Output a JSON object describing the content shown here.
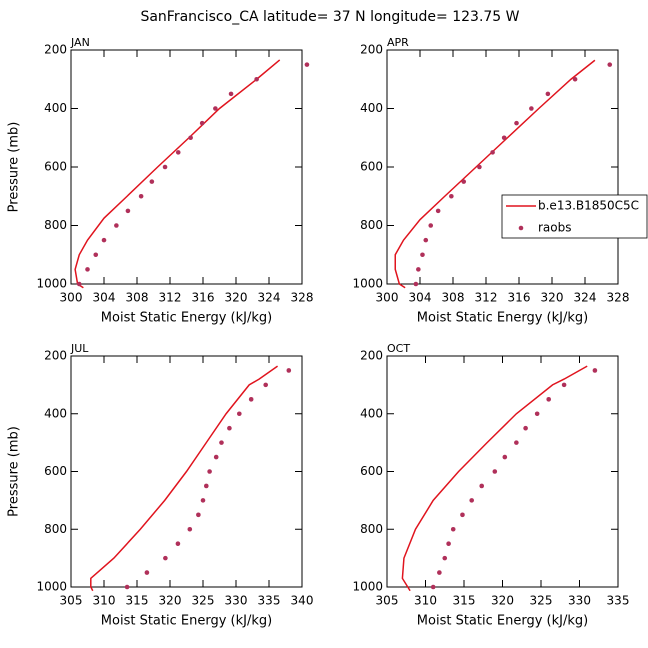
{
  "title": "SanFrancisco_CA  latitude= 37 N longitude= 123.75 W",
  "chart_data": [
    {
      "type": "line",
      "title": "JAN",
      "xlabel": "Moist Static Energy (kJ/kg)",
      "ylabel": "Pressure (mb)",
      "xlim": [
        300,
        328
      ],
      "xticks": [
        300,
        304,
        308,
        312,
        316,
        320,
        324,
        328
      ],
      "ylim": [
        200,
        1000
      ],
      "yticks": [
        200,
        400,
        600,
        800,
        1000
      ],
      "y_reversed": true,
      "series": [
        {
          "color": "#e0141e",
          "style": "line",
          "x": [
            325.3,
            322.5,
            318,
            314.3,
            310.5,
            306.8,
            304,
            302,
            301,
            300.5,
            300.8,
            301.5
          ],
          "values": [
            234,
            300,
            400,
            500,
            600,
            700,
            775,
            850,
            900,
            950,
            1000,
            1013
          ]
        },
        {
          "color": "#b0305a",
          "style": "marker",
          "x": [
            328.6,
            322.5,
            319.4,
            317.5,
            315.9,
            314.5,
            313,
            311.4,
            309.8,
            308.5,
            306.9,
            305.5,
            304,
            303,
            302,
            301
          ],
          "values": [
            250,
            300,
            350,
            400,
            450,
            500,
            550,
            600,
            650,
            700,
            750,
            800,
            850,
            900,
            950,
            1000
          ]
        }
      ]
    },
    {
      "type": "line",
      "title": "APR",
      "xlabel": "Moist Static Energy (kJ/kg)",
      "xlim": [
        300,
        328
      ],
      "xticks": [
        300,
        304,
        308,
        312,
        316,
        320,
        324,
        328
      ],
      "ylim": [
        200,
        1000
      ],
      "yticks": [
        200,
        400,
        600,
        800,
        1000
      ],
      "y_reversed": true,
      "legend": "right",
      "series": [
        {
          "name": "b.e13.B1850C5C",
          "color": "#e0141e",
          "style": "line",
          "x": [
            325.2,
            322.3,
            318.4,
            314.6,
            310.8,
            307,
            304,
            302,
            301,
            301,
            301.5,
            302.2
          ],
          "values": [
            235,
            300,
            400,
            500,
            600,
            700,
            780,
            850,
            900,
            950,
            1000,
            1013
          ]
        },
        {
          "name": "raobs",
          "color": "#b0305a",
          "style": "marker",
          "x": [
            327,
            322.8,
            319.5,
            317.5,
            315.7,
            314.2,
            312.8,
            311.2,
            309.3,
            307.8,
            306.2,
            305.3,
            304.7,
            304.3,
            303.8,
            303.5
          ],
          "values": [
            250,
            300,
            350,
            400,
            450,
            500,
            550,
            600,
            650,
            700,
            750,
            800,
            850,
            900,
            950,
            1000
          ]
        }
      ]
    },
    {
      "type": "line",
      "title": "JUL",
      "xlabel": "Moist Static Energy (kJ/kg)",
      "ylabel": "Pressure (mb)",
      "xlim": [
        305,
        340
      ],
      "xticks": [
        305,
        310,
        315,
        320,
        325,
        330,
        335,
        340
      ],
      "ylim": [
        200,
        1000
      ],
      "yticks": [
        200,
        400,
        600,
        800,
        1000
      ],
      "y_reversed": true,
      "series": [
        {
          "color": "#e0141e",
          "style": "line",
          "x": [
            336.3,
            333.5,
            332,
            328.5,
            325.5,
            322.5,
            319.2,
            315.5,
            311.5,
            309,
            308,
            308,
            308.3
          ],
          "values": [
            235,
            280,
            300,
            400,
            500,
            600,
            700,
            800,
            900,
            950,
            970,
            1000,
            1013
          ]
        },
        {
          "color": "#b0305a",
          "style": "marker",
          "x": [
            338,
            334.5,
            332.3,
            330.5,
            329,
            327.8,
            327,
            326,
            325.5,
            325,
            324.3,
            323,
            321.2,
            319.3,
            316.5,
            313.5
          ],
          "values": [
            250,
            300,
            350,
            400,
            450,
            500,
            550,
            600,
            650,
            700,
            750,
            800,
            850,
            900,
            950,
            1000
          ]
        }
      ]
    },
    {
      "type": "line",
      "title": "OCT",
      "xlabel": "Moist Static Energy (kJ/kg)",
      "xlim": [
        305,
        335
      ],
      "xticks": [
        305,
        310,
        315,
        320,
        325,
        330,
        335
      ],
      "ylim": [
        200,
        1000
      ],
      "yticks": [
        200,
        400,
        600,
        800,
        1000
      ],
      "y_reversed": true,
      "series": [
        {
          "color": "#e0141e",
          "style": "line",
          "x": [
            331,
            328,
            326.5,
            321.8,
            318,
            314.3,
            311,
            308.7,
            307.2,
            307,
            308
          ],
          "values": [
            235,
            280,
            300,
            400,
            500,
            600,
            700,
            800,
            900,
            970,
            1013
          ]
        },
        {
          "color": "#b0305a",
          "style": "marker",
          "x": [
            332,
            328,
            326,
            324.5,
            323,
            321.8,
            320.3,
            319,
            317.3,
            316,
            314.8,
            313.6,
            313,
            312.5,
            311.8,
            311
          ],
          "values": [
            250,
            300,
            350,
            400,
            450,
            500,
            550,
            600,
            650,
            700,
            750,
            800,
            850,
            900,
            950,
            1000
          ]
        }
      ]
    }
  ]
}
